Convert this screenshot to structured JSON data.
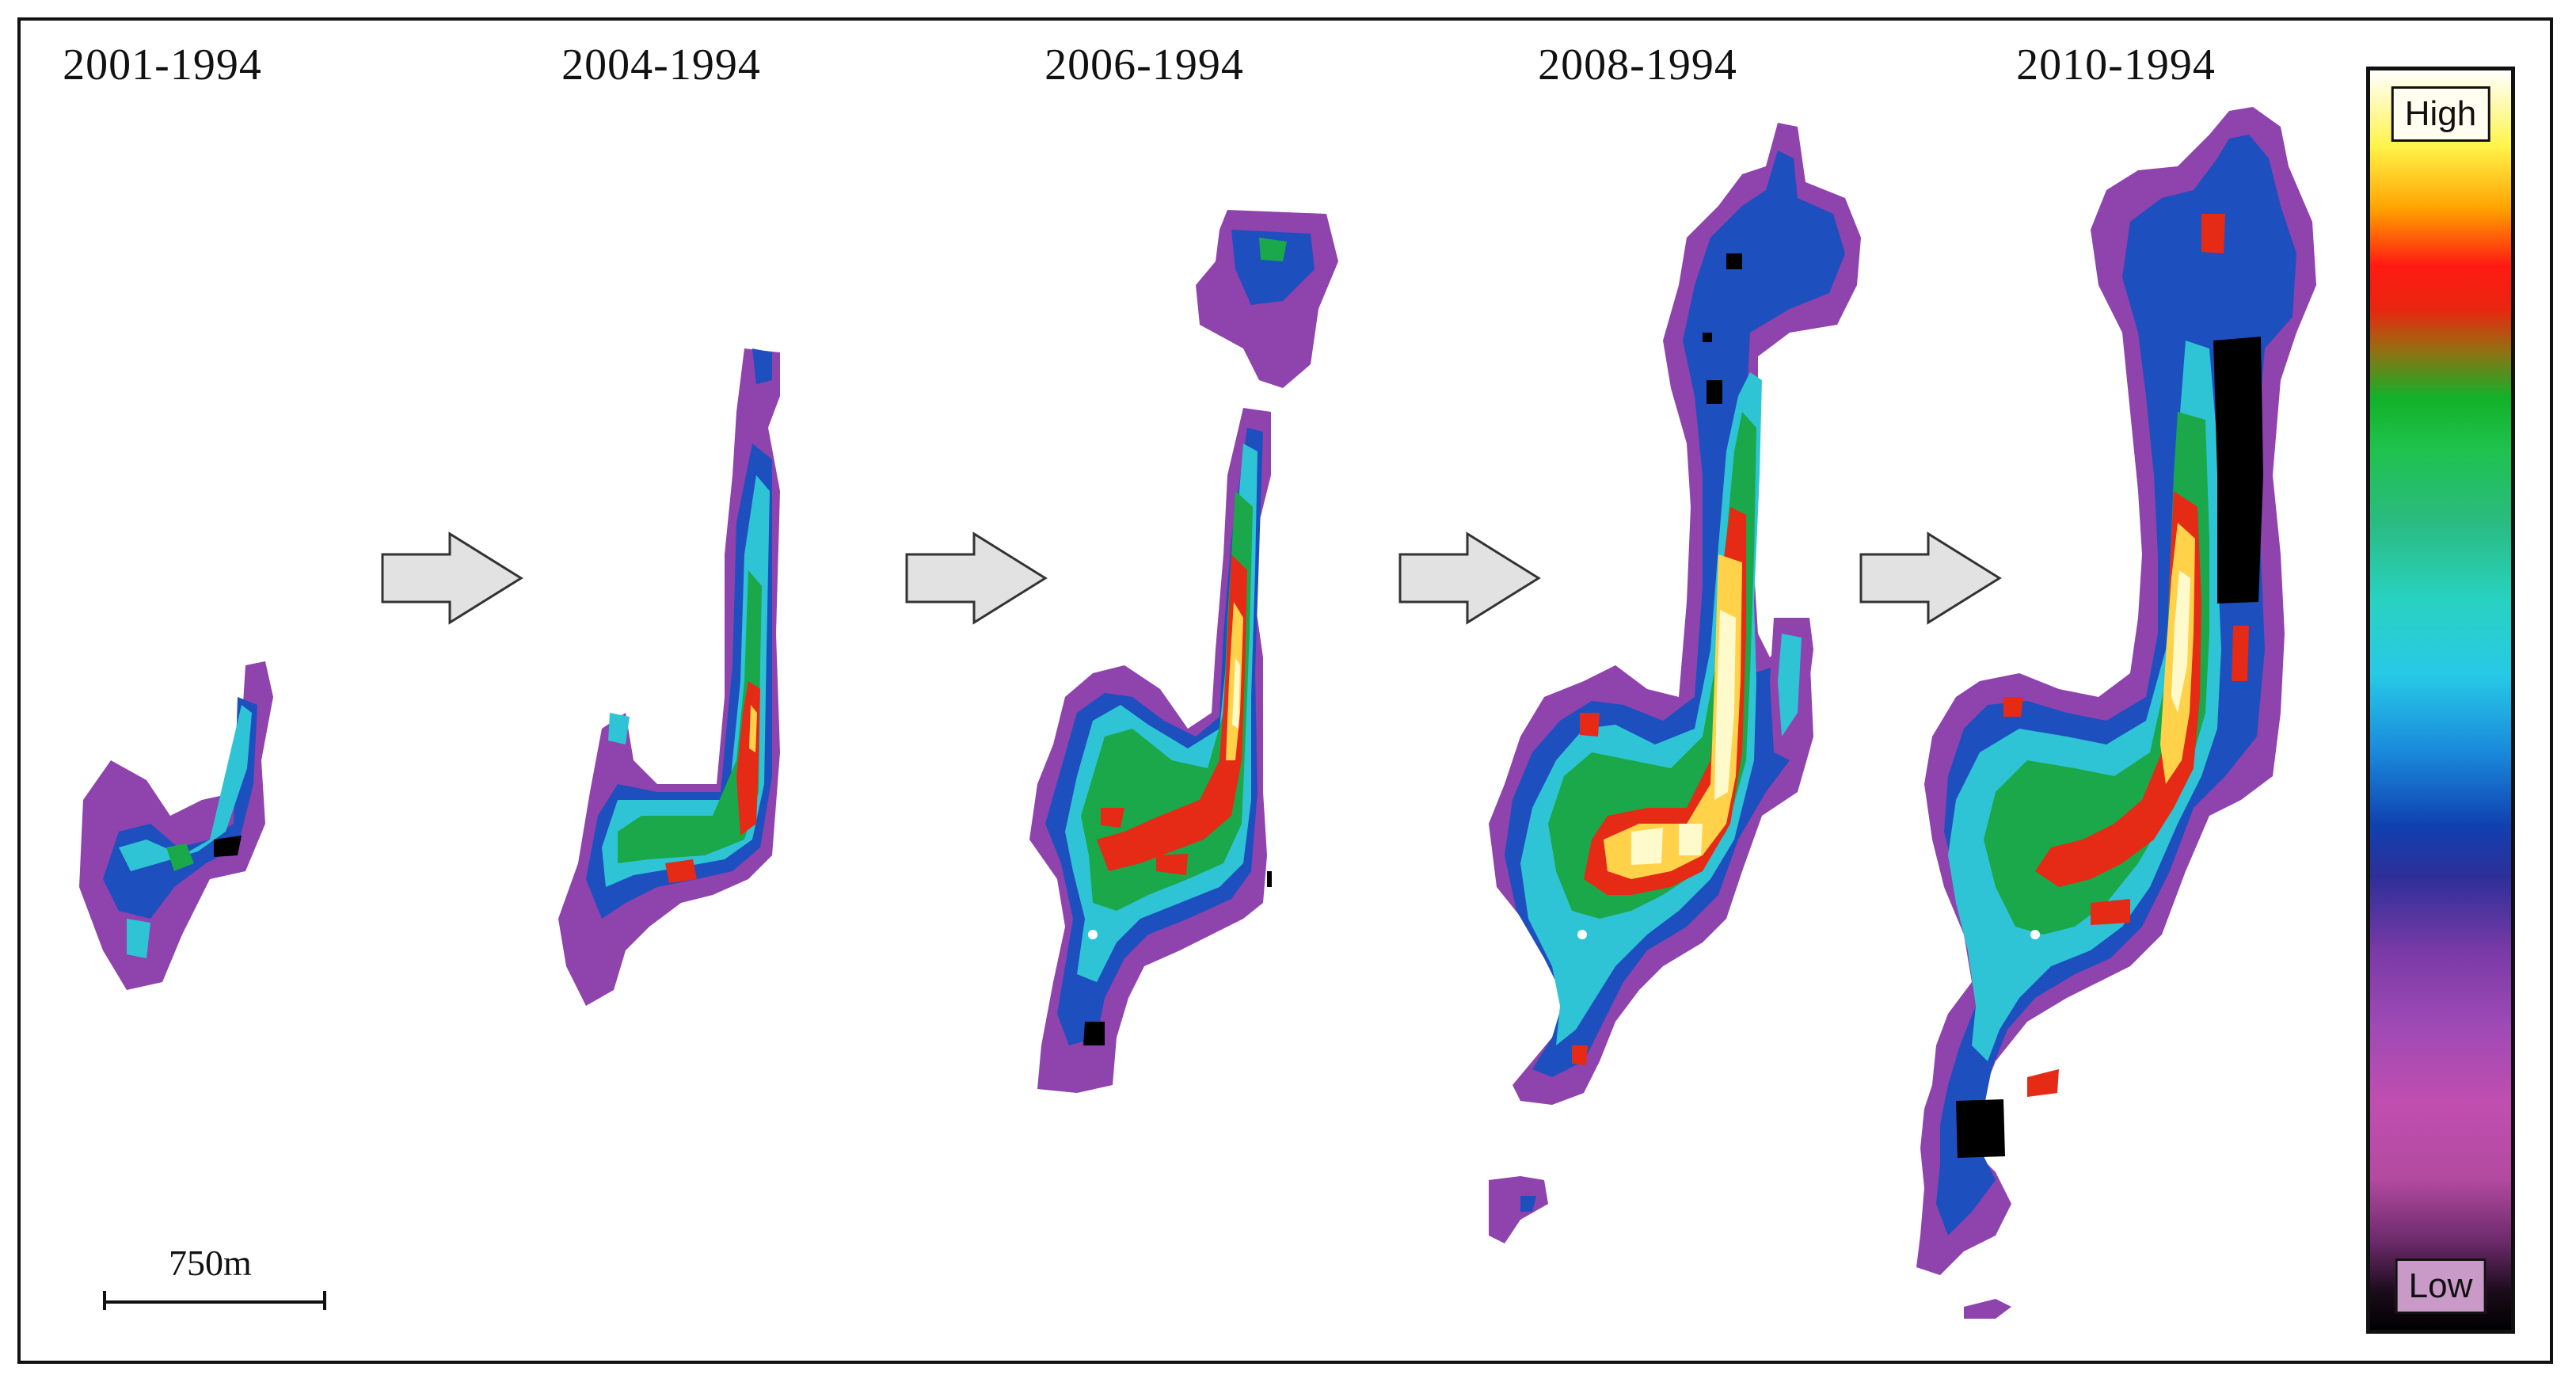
{
  "panels": [
    {
      "title": "2001-1994"
    },
    {
      "title": "2004-1994"
    },
    {
      "title": "2006-1994"
    },
    {
      "title": "2008-1994"
    },
    {
      "title": "2010-1994"
    }
  ],
  "legend": {
    "high_label": "High",
    "low_label": "Low",
    "colors": [
      "#ffffff",
      "#fff44a",
      "#ff1a12",
      "#12b12a",
      "#27c9e6",
      "#1040b0",
      "#9f4ab5",
      "#000000"
    ]
  },
  "scale_bar": {
    "label": "750m"
  },
  "arrow_color": "#e2e2e2"
}
